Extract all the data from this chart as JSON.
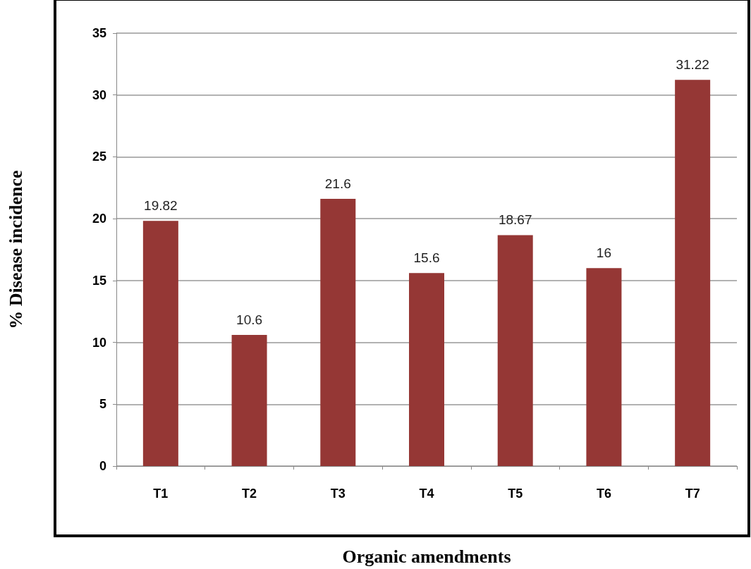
{
  "chart_data": {
    "type": "bar",
    "xlabel": "Organic amendments",
    "ylabel": "% Disease incidence",
    "categories": [
      "T1",
      "T2",
      "T3",
      "T4",
      "T5",
      "T6",
      "T7"
    ],
    "values": [
      19.82,
      10.6,
      21.6,
      15.6,
      18.67,
      16,
      31.22
    ],
    "color": "#953735",
    "ylim": [
      0,
      35
    ],
    "yticks": [
      0,
      5,
      10,
      15,
      20,
      25,
      30,
      35
    ],
    "grid": "y",
    "data_labels": true
  }
}
